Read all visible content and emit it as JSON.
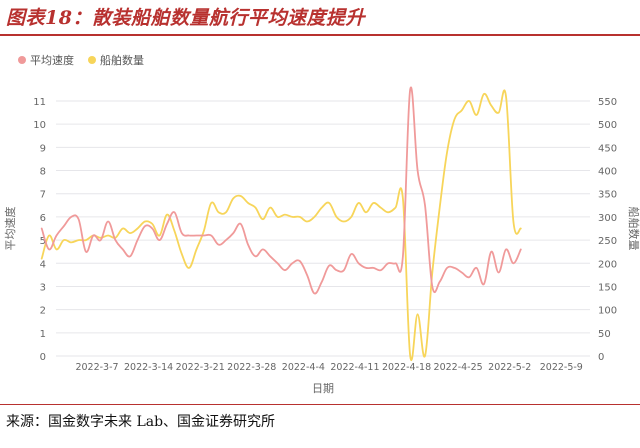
{
  "figure": {
    "title": "图表18：散装船舶数量航行平均速度提升",
    "source": "来源：国金数字未来 Lab、国金证券研究所"
  },
  "chart_data": {
    "type": "line",
    "xlabel": "日期",
    "ylabel_left": "平均速度",
    "ylabel_right": "船舶数量",
    "x_ticks": [
      "2022-3-7",
      "2022-3-14",
      "2022-3-21",
      "2022-3-28",
      "2022-4-4",
      "2022-4-11",
      "2022-4-18",
      "2022-4-25",
      "2022-5-2",
      "2022-5-9"
    ],
    "x_range_days": [
      0,
      76
    ],
    "ylim_left": [
      0,
      11
    ],
    "yticks_left": [
      0,
      1,
      2,
      3,
      4,
      5,
      6,
      7,
      8,
      9,
      10,
      11
    ],
    "ylim_right": [
      0,
      550
    ],
    "yticks_right": [
      0,
      50,
      100,
      150,
      200,
      250,
      300,
      350,
      400,
      450,
      500,
      550
    ],
    "legend_position": "top-left",
    "grid": true,
    "colors": {
      "speed": "#f09a9a",
      "ships": "#f7d55a",
      "grid": "#e6e6ea",
      "axis_text": "#666666"
    },
    "series": [
      {
        "name": "平均速度",
        "axis": "left",
        "points": [
          [
            0,
            5.5
          ],
          [
            1,
            4.6
          ],
          [
            2,
            5.2
          ],
          [
            3,
            5.6
          ],
          [
            4,
            6.0
          ],
          [
            5,
            5.9
          ],
          [
            6,
            4.5
          ],
          [
            7,
            5.2
          ],
          [
            8,
            5.0
          ],
          [
            9,
            5.8
          ],
          [
            10,
            5.0
          ],
          [
            11,
            4.6
          ],
          [
            12,
            4.3
          ],
          [
            13,
            5.0
          ],
          [
            14,
            5.6
          ],
          [
            15,
            5.5
          ],
          [
            16,
            5.0
          ],
          [
            17,
            5.7
          ],
          [
            18,
            6.2
          ],
          [
            19,
            5.3
          ],
          [
            20,
            5.2
          ],
          [
            21,
            5.2
          ],
          [
            22,
            5.2
          ],
          [
            23,
            5.2
          ],
          [
            24,
            4.8
          ],
          [
            25,
            5.0
          ],
          [
            26,
            5.3
          ],
          [
            27,
            5.7
          ],
          [
            28,
            4.8
          ],
          [
            29,
            4.3
          ],
          [
            30,
            4.6
          ],
          [
            31,
            4.3
          ],
          [
            32,
            4.0
          ],
          [
            33,
            3.7
          ],
          [
            34,
            4.0
          ],
          [
            35,
            4.1
          ],
          [
            36,
            3.5
          ],
          [
            37,
            2.7
          ],
          [
            38,
            3.2
          ],
          [
            39,
            3.9
          ],
          [
            40,
            3.7
          ],
          [
            41,
            3.7
          ],
          [
            42,
            4.4
          ],
          [
            43,
            4.0
          ],
          [
            44,
            3.8
          ],
          [
            45,
            3.8
          ],
          [
            46,
            3.7
          ],
          [
            47,
            4.0
          ],
          [
            48,
            4.0
          ],
          [
            49,
            4.3
          ],
          [
            50,
            11.5
          ],
          [
            51,
            8.0
          ],
          [
            52,
            6.5
          ],
          [
            53,
            3.0
          ],
          [
            54,
            3.2
          ],
          [
            55,
            3.8
          ],
          [
            56,
            3.8
          ],
          [
            57,
            3.6
          ],
          [
            58,
            3.4
          ],
          [
            59,
            3.8
          ],
          [
            60,
            3.1
          ],
          [
            61,
            4.5
          ],
          [
            62,
            3.6
          ],
          [
            63,
            4.6
          ],
          [
            64,
            4.0
          ],
          [
            65,
            4.6
          ]
        ]
      },
      {
        "name": "船舶数量",
        "axis": "right",
        "points": [
          [
            0,
            210
          ],
          [
            1,
            260
          ],
          [
            2,
            230
          ],
          [
            3,
            250
          ],
          [
            4,
            245
          ],
          [
            5,
            250
          ],
          [
            6,
            250
          ],
          [
            7,
            260
          ],
          [
            8,
            255
          ],
          [
            9,
            260
          ],
          [
            10,
            255
          ],
          [
            11,
            275
          ],
          [
            12,
            265
          ],
          [
            13,
            275
          ],
          [
            14,
            290
          ],
          [
            15,
            285
          ],
          [
            16,
            260
          ],
          [
            17,
            305
          ],
          [
            18,
            270
          ],
          [
            19,
            220
          ],
          [
            20,
            190
          ],
          [
            21,
            230
          ],
          [
            22,
            270
          ],
          [
            23,
            330
          ],
          [
            24,
            310
          ],
          [
            25,
            310
          ],
          [
            26,
            340
          ],
          [
            27,
            345
          ],
          [
            28,
            330
          ],
          [
            29,
            320
          ],
          [
            30,
            295
          ],
          [
            31,
            320
          ],
          [
            32,
            300
          ],
          [
            33,
            305
          ],
          [
            34,
            300
          ],
          [
            35,
            300
          ],
          [
            36,
            290
          ],
          [
            37,
            300
          ],
          [
            38,
            320
          ],
          [
            39,
            330
          ],
          [
            40,
            300
          ],
          [
            41,
            290
          ],
          [
            42,
            300
          ],
          [
            43,
            330
          ],
          [
            44,
            310
          ],
          [
            45,
            330
          ],
          [
            46,
            320
          ],
          [
            47,
            310
          ],
          [
            48,
            320
          ],
          [
            49,
            340
          ],
          [
            50,
            0
          ],
          [
            51,
            90
          ],
          [
            52,
            0
          ],
          [
            53,
            180
          ],
          [
            54,
            320
          ],
          [
            55,
            440
          ],
          [
            56,
            510
          ],
          [
            57,
            530
          ],
          [
            58,
            550
          ],
          [
            59,
            520
          ],
          [
            60,
            565
          ],
          [
            61,
            540
          ],
          [
            62,
            525
          ],
          [
            63,
            560
          ],
          [
            64,
            290
          ],
          [
            65,
            275
          ]
        ]
      }
    ]
  }
}
